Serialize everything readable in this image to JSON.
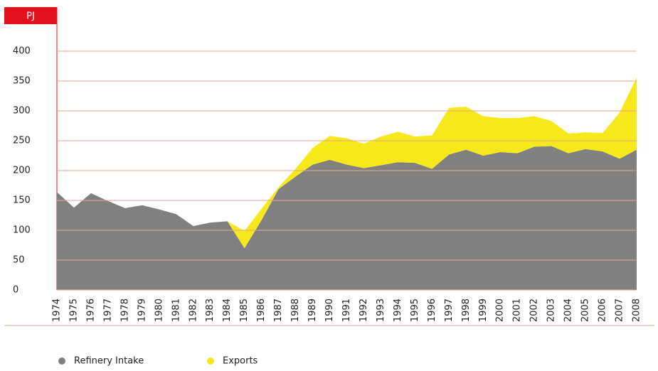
{
  "chart_data": {
    "type": "stacked_area",
    "y_label": "PJ",
    "categories": [
      "1974",
      "1975",
      "1976",
      "1977",
      "1978",
      "1979",
      "1980",
      "1981",
      "1982",
      "1983",
      "1984",
      "1985",
      "1986",
      "1987",
      "1988",
      "1989",
      "1990",
      "1991",
      "1992",
      "1993",
      "1994",
      "1995",
      "1996",
      "1997",
      "1998",
      "1999",
      "2000",
      "2001",
      "2002",
      "2003",
      "2004",
      "2005",
      "2006",
      "2007",
      "2008"
    ],
    "series": [
      {
        "name": "Refinery Intake",
        "color": "#808080",
        "values": [
          164,
          138,
          162,
          149,
          137,
          142,
          135,
          127,
          107,
          113,
          115,
          70,
          117,
          169,
          190,
          210,
          218,
          210,
          204,
          209,
          214,
          213,
          203,
          227,
          235,
          225,
          231,
          229,
          240,
          241,
          229,
          236,
          232,
          220,
          235
        ]
      },
      {
        "name": "Exports",
        "color": "#f7e81c",
        "values": [
          0,
          0,
          0,
          0,
          0,
          0,
          0,
          0,
          0,
          0,
          0,
          29,
          19,
          3,
          13,
          28,
          40,
          44,
          41,
          48,
          51,
          44,
          56,
          78,
          72,
          66,
          57,
          59,
          51,
          42,
          33,
          28,
          31,
          77,
          121
        ]
      }
    ],
    "ylim": [
      0,
      400
    ],
    "yticks": [
      0,
      50,
      100,
      150,
      200,
      250,
      300,
      350,
      400
    ],
    "grid": true
  }
}
